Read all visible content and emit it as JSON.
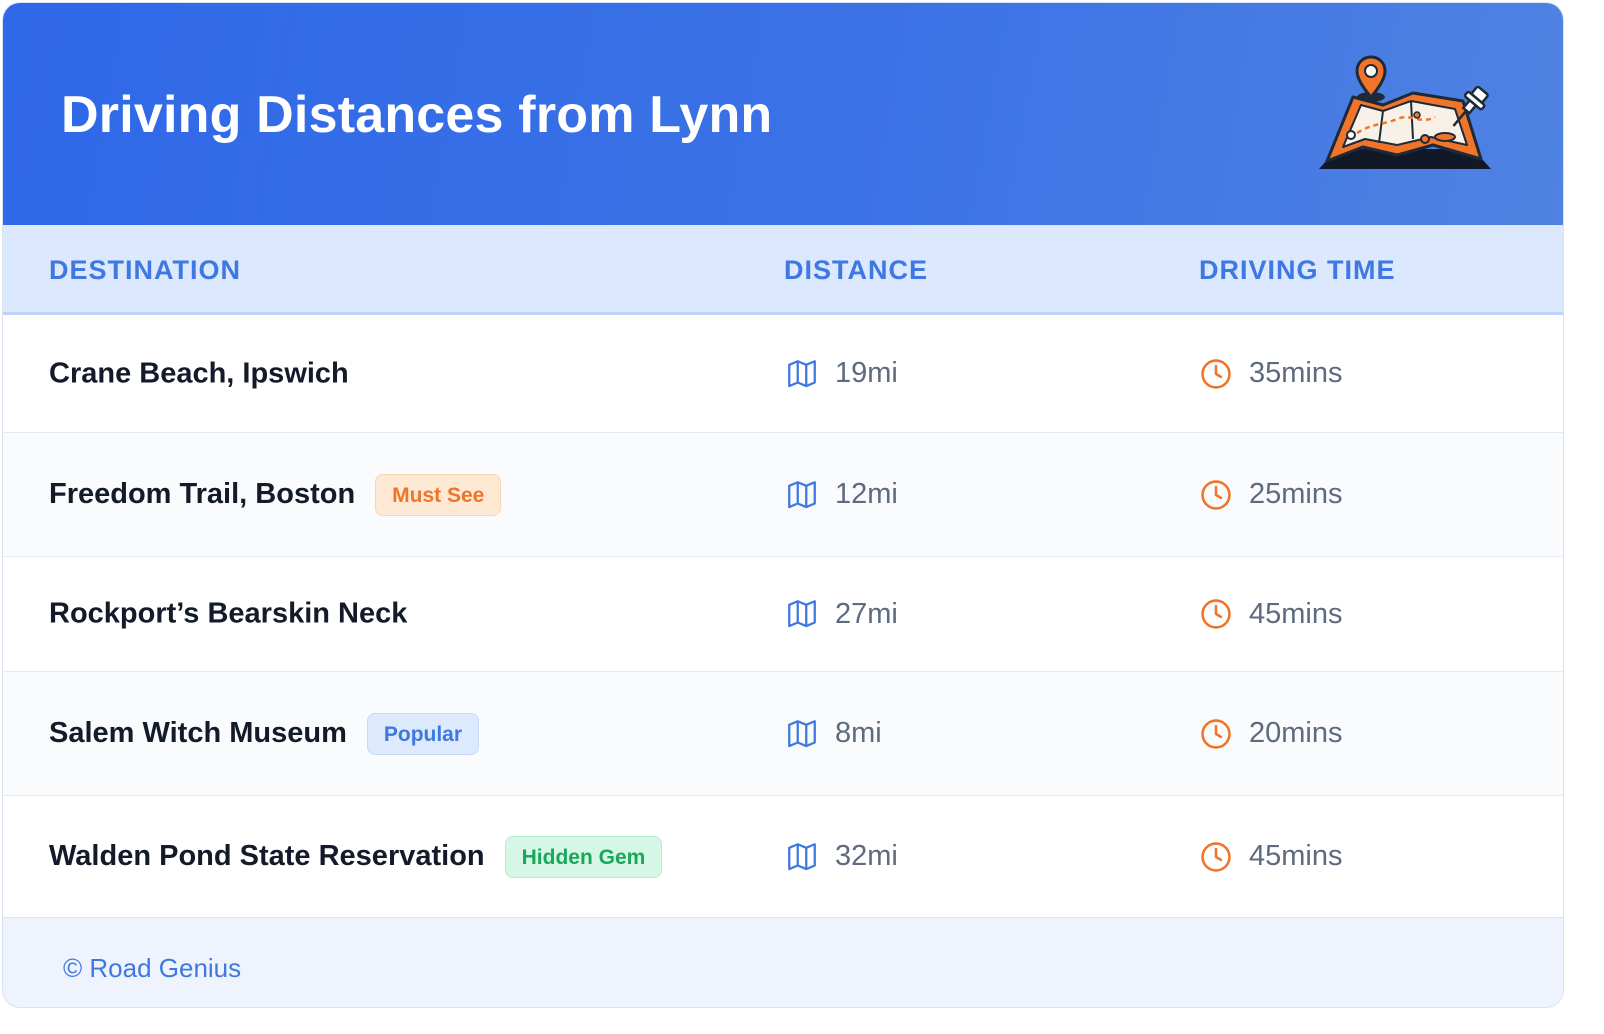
{
  "header": {
    "title": "Driving Distances from Lynn",
    "illustration_icon": "map-pin-illustration"
  },
  "columns": {
    "destination": "DESTINATION",
    "distance": "DISTANCE",
    "driving_time": "DRIVING TIME"
  },
  "rows": [
    {
      "destination": "Crane Beach, Ipswich",
      "badge": "",
      "distance": "19mi",
      "time": "35mins"
    },
    {
      "destination": "Freedom Trail, Boston",
      "badge": "Must See",
      "badge_color": "orange",
      "distance": "12mi",
      "time": "25mins"
    },
    {
      "destination": "Rockport’s Bearskin Neck",
      "badge": "",
      "distance": "27mi",
      "time": "45mins"
    },
    {
      "destination": "Salem Witch Museum",
      "badge": "Popular",
      "badge_color": "blue",
      "distance": "8mi",
      "time": "20mins"
    },
    {
      "destination": "Walden Pond State Reservation",
      "badge": "Hidden Gem",
      "badge_color": "green",
      "distance": "32mi",
      "time": "45mins"
    }
  ],
  "icons": {
    "distance": "map-icon",
    "time": "clock-icon"
  },
  "colors": {
    "header_start": "#2f68e8",
    "header_end": "#4f82e2",
    "accent_blue": "#3f78e0",
    "accent_orange": "#f0742a",
    "accent_green": "#19a85a"
  },
  "footer": {
    "credit": "© Road Genius"
  }
}
